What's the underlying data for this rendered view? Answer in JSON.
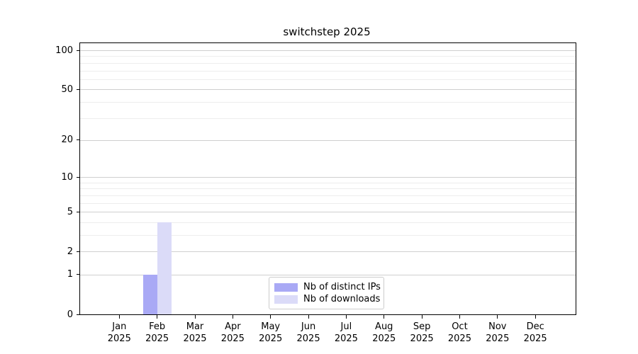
{
  "figure": {
    "background": "#ffffff"
  },
  "chart_data": {
    "type": "bar",
    "title": "switchstep 2025",
    "year": "2025",
    "categories": [
      "Jan",
      "Feb",
      "Mar",
      "Apr",
      "May",
      "Jun",
      "Jul",
      "Aug",
      "Sep",
      "Oct",
      "Nov",
      "Dec"
    ],
    "series": [
      {
        "name": "Nb of distinct IPs",
        "color": "#a9a9f5",
        "values": [
          0,
          1,
          0,
          0,
          0,
          0,
          0,
          0,
          0,
          0,
          0,
          0
        ]
      },
      {
        "name": "Nb of downloads",
        "color": "#dbdbf8",
        "values": [
          0,
          4,
          0,
          0,
          0,
          0,
          0,
          0,
          0,
          0,
          0,
          0
        ]
      }
    ],
    "yscale": "log1p",
    "ylim": [
      0,
      113.4
    ],
    "yticks": [
      0,
      1,
      2,
      5,
      10,
      20,
      50,
      100
    ],
    "minor_yticks": [
      3,
      4,
      6,
      7,
      8,
      9,
      30,
      40,
      60,
      70,
      80,
      90
    ],
    "grid": "horizontal",
    "legend_position": "lower center",
    "colors": {
      "major_grid": "#cfcfcf",
      "minor_grid": "#ededed",
      "spine": "#000000",
      "text": "#000000"
    }
  }
}
